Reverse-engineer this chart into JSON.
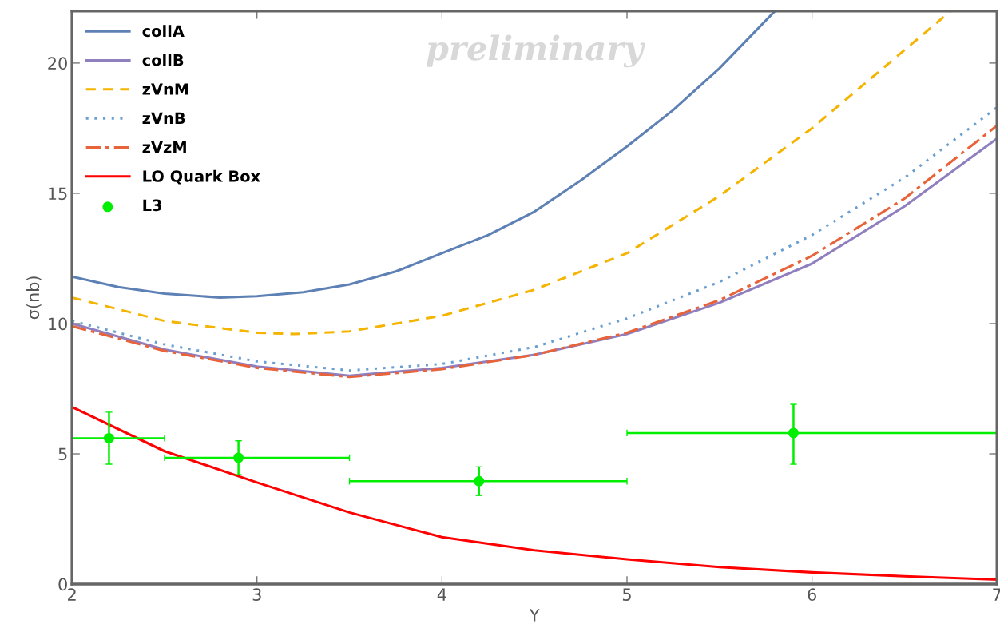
{
  "chart_data": {
    "type": "line",
    "xlabel": "Y",
    "ylabel": "σ(nb)",
    "xlim": [
      2,
      7
    ],
    "ylim": [
      0,
      22
    ],
    "xticks": [
      2,
      3,
      4,
      5,
      6,
      7
    ],
    "yticks": [
      0,
      5,
      10,
      15,
      20
    ],
    "grid": false,
    "legend": "top left",
    "annotations": [
      "preliminary"
    ],
    "series": [
      {
        "name": "collA",
        "color": "#5e81b5",
        "line_style": "solid",
        "x": [
          2,
          2.25,
          2.5,
          2.8,
          3,
          3.25,
          3.5,
          3.75,
          4,
          4.25,
          4.5,
          4.75,
          5,
          5.25,
          5.5,
          5.8
        ],
        "values": [
          11.8,
          11.4,
          11.15,
          11.0,
          11.05,
          11.2,
          11.5,
          12.0,
          12.7,
          13.4,
          14.3,
          15.5,
          16.8,
          18.2,
          19.8,
          22.0
        ]
      },
      {
        "name": "collB",
        "color": "#8f7fbf",
        "line_style": "solid",
        "x": [
          2,
          2.5,
          3,
          3.5,
          4,
          4.5,
          5,
          5.5,
          6,
          6.5,
          7
        ],
        "values": [
          10.0,
          9.0,
          8.35,
          8.0,
          8.3,
          8.8,
          9.6,
          10.8,
          12.3,
          14.5,
          17.1
        ]
      },
      {
        "name": "zVnM",
        "color": "#f5b400",
        "line_style": "dashed",
        "x": [
          2,
          2.5,
          3,
          3.2,
          3.5,
          4,
          4.5,
          5,
          5.5,
          6,
          6.5,
          6.75
        ],
        "values": [
          11.0,
          10.1,
          9.65,
          9.6,
          9.7,
          10.3,
          11.3,
          12.7,
          14.9,
          17.5,
          20.5,
          22.0
        ]
      },
      {
        "name": "zVnB",
        "color": "#6a9fd0",
        "line_style": "dotted",
        "x": [
          2,
          2.5,
          3,
          3.5,
          4,
          4.5,
          5,
          5.5,
          6,
          6.5,
          7
        ],
        "values": [
          10.1,
          9.2,
          8.55,
          8.2,
          8.45,
          9.1,
          10.2,
          11.6,
          13.4,
          15.6,
          18.3
        ]
      },
      {
        "name": "zVzM",
        "color": "#e8633a",
        "line_style": "dashdot",
        "x": [
          2,
          2.5,
          3,
          3.5,
          4,
          4.5,
          5,
          5.5,
          6,
          6.5,
          7
        ],
        "values": [
          9.9,
          8.95,
          8.3,
          7.95,
          8.25,
          8.8,
          9.65,
          10.9,
          12.6,
          14.8,
          17.6
        ]
      },
      {
        "name": "LO Quark Box",
        "color": "#ff0000",
        "line_style": "solid",
        "x": [
          2,
          2.5,
          3,
          3.5,
          4,
          4.5,
          5,
          5.5,
          6,
          6.5,
          7
        ],
        "values": [
          6.8,
          5.1,
          3.9,
          2.75,
          1.8,
          1.3,
          0.95,
          0.65,
          0.45,
          0.3,
          0.17
        ]
      },
      {
        "name": "L3",
        "type": "scatter",
        "color": "#00ee00",
        "marker": "circle",
        "x": [
          2.2,
          2.9,
          4.2,
          5.9
        ],
        "values": [
          5.6,
          4.85,
          3.95,
          5.8
        ],
        "errors": [
          [
            4.6,
            6.6
          ],
          [
            4.2,
            5.5
          ],
          [
            3.4,
            4.5
          ],
          [
            4.6,
            6.9
          ]
        ],
        "xerrors": [
          [
            2.0,
            2.5
          ],
          [
            2.5,
            3.5
          ],
          [
            3.5,
            5.0
          ],
          [
            5.0,
            7.0
          ]
        ]
      }
    ]
  }
}
